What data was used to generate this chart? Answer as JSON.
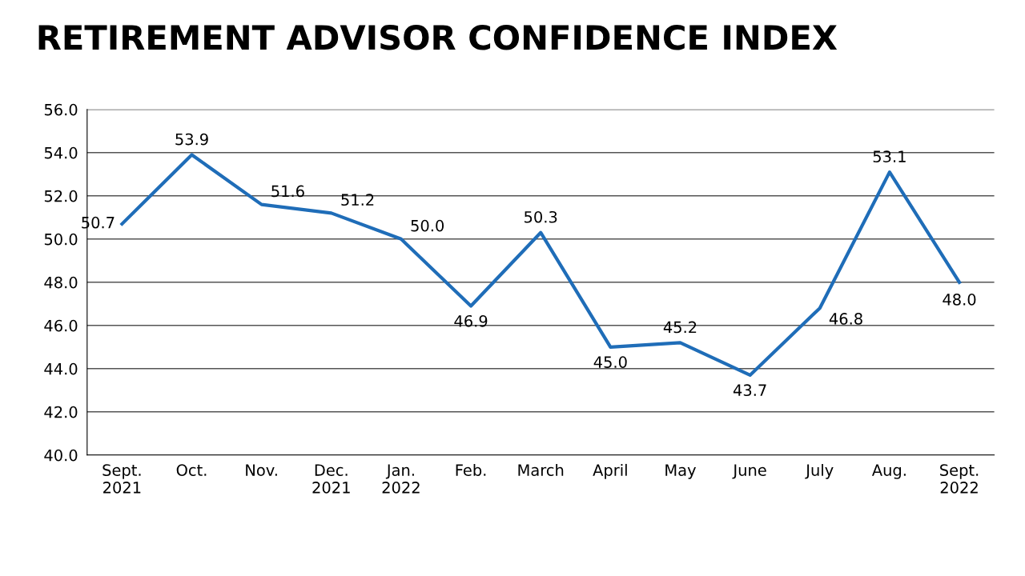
{
  "chart_data": {
    "type": "line",
    "title": "RETIREMENT ADVISOR CONFIDENCE INDEX",
    "categories": [
      "Sept.\n2021",
      "Oct.",
      "Nov.",
      "Dec.\n2021",
      "Jan.\n2022",
      "Feb.",
      "March",
      "April",
      "May",
      "June",
      "July",
      "Aug.",
      "Sept.\n2022"
    ],
    "series": [
      {
        "color": "#1f6db8",
        "values": [
          50.7,
          53.9,
          51.6,
          51.2,
          50.0,
          46.9,
          50.3,
          45.0,
          45.2,
          43.7,
          46.8,
          53.1,
          48.0
        ],
        "value_labels": [
          "50.7",
          "53.9",
          "51.6",
          "51.2",
          "50.0",
          "46.9",
          "50.3",
          "45.0",
          "45.2",
          "43.7",
          "46.8",
          "53.1",
          "48.0"
        ]
      }
    ],
    "ylim": [
      40,
      56
    ],
    "yticks": [
      {
        "value": 40,
        "label": "40.0"
      },
      {
        "value": 42,
        "label": "42.0"
      },
      {
        "value": 44,
        "label": "44.0"
      },
      {
        "value": 46,
        "label": "46.0"
      },
      {
        "value": 48,
        "label": "48.0"
      },
      {
        "value": 50,
        "label": "50.0"
      },
      {
        "value": 52,
        "label": "52.0"
      },
      {
        "value": 54,
        "label": "54.0"
      },
      {
        "value": 56,
        "label": "56.0"
      }
    ],
    "grid": "y",
    "legend": false,
    "marker": "none",
    "line_style": "solid"
  }
}
